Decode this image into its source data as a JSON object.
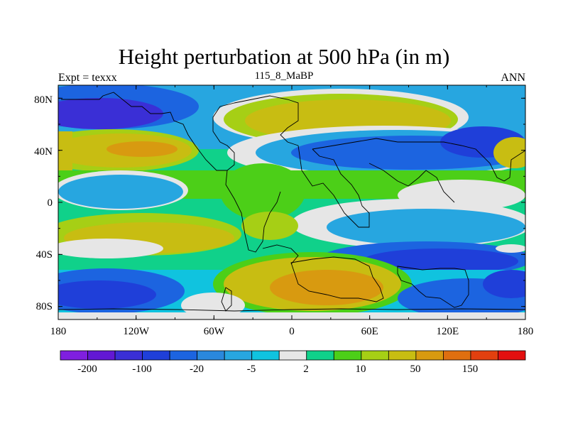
{
  "chart_data": {
    "type": "heatmap",
    "title": "Height perturbation at 500 hPa (in m)",
    "left_label": "Expt = texxx",
    "center_label": "115_8_MaBP",
    "right_label": "ANN",
    "x_ticks": [
      "180",
      "120W",
      "60W",
      "0",
      "60E",
      "120E",
      "180"
    ],
    "y_ticks": [
      "80N",
      "40N",
      "0",
      "40S",
      "80S"
    ],
    "xlim": [
      -180,
      180
    ],
    "ylim": [
      -90,
      90
    ],
    "colorbar": {
      "labels": [
        "-200",
        "-100",
        "-20",
        "-5",
        "2",
        "10",
        "50",
        "150"
      ],
      "colors": [
        "#7f1fdf",
        "#6218d4",
        "#3a2fd6",
        "#1f3fd9",
        "#1c64e0",
        "#2a88dd",
        "#27a6e0",
        "#10c3df",
        "#e6e6e6",
        "#10d18a",
        "#4ccf18",
        "#a6cf15",
        "#c8bd12",
        "#d89a10",
        "#df6f10",
        "#e2400f",
        "#e30f0f"
      ]
    }
  }
}
